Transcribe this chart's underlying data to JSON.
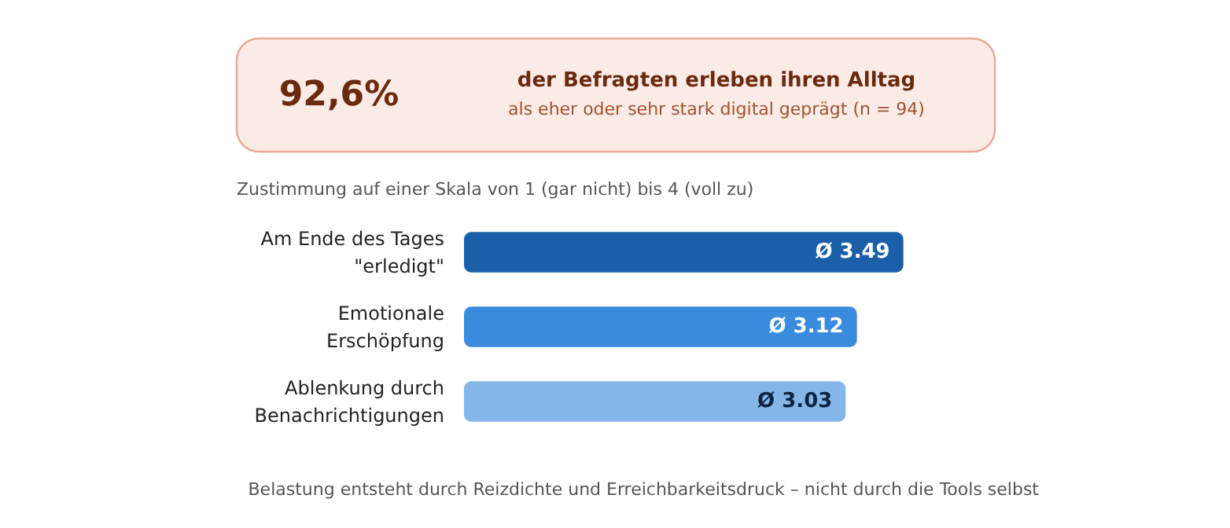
{
  "chart_data": [
    {
      "type": "other",
      "title": "92,6%",
      "subtitle": "der Befragten erleben ihren Alltag",
      "annotations": [
        "als eher oder sehr stark digital geprägt (n = 94)"
      ]
    },
    {
      "type": "bar",
      "orientation": "horizontal",
      "title": "Zustimmung auf einer Skala von 1 (gar nicht) bis 4 (voll zu)",
      "categories": [
        "Am Ende des Tages\n\"erledigt\"",
        "Emotionale\nErschöpfung",
        "Ablenkung durch\nBenachrichtigungen"
      ],
      "values": [
        3.49,
        3.12,
        3.03
      ],
      "colors": [
        "#1a5fa8",
        "#3a8ade",
        "#85b6ea"
      ],
      "value_labels": [
        "Ø 3.49",
        "Ø 3.12",
        "Ø 3.03"
      ],
      "annotations": [
        "Belastung entsteht durch Reizdichte und Erreichbarkeitsdruck – nicht durch die Tools selbst"
      ]
    }
  ]
}
